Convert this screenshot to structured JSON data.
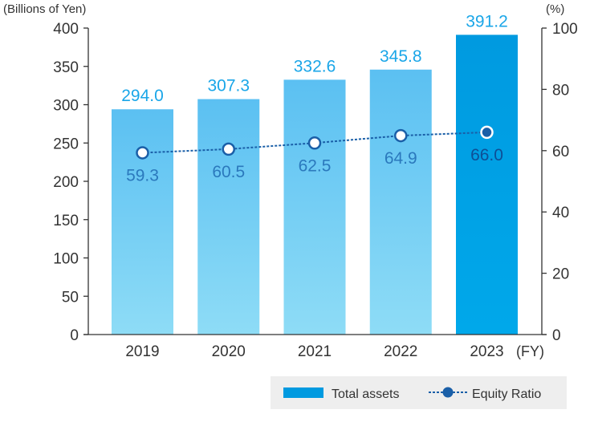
{
  "chart_data": {
    "type": "bar",
    "categories": [
      "2019",
      "2020",
      "2021",
      "2022",
      "2023"
    ],
    "series": [
      {
        "name": "Total assets",
        "kind": "bar",
        "axis": "left",
        "values": [
          294.0,
          307.3,
          332.6,
          345.8,
          391.2
        ],
        "labels": [
          "294.0",
          "307.3",
          "332.6",
          "345.8",
          "391.2"
        ]
      },
      {
        "name": "Equity Ratio",
        "kind": "line",
        "axis": "right",
        "values": [
          59.3,
          60.5,
          62.5,
          64.9,
          66.0
        ],
        "labels": [
          "59.3",
          "60.5",
          "62.5",
          "64.9",
          "66.0"
        ]
      }
    ],
    "y_left": {
      "label": "(Billions of Yen)",
      "range": [
        0,
        400
      ],
      "ticks": [
        "0",
        "50",
        "100",
        "150",
        "200",
        "250",
        "300",
        "350",
        "400"
      ]
    },
    "y_right": {
      "label": "(%)",
      "range": [
        0,
        100
      ],
      "ticks": [
        "0",
        "20",
        "40",
        "60",
        "80",
        "100"
      ]
    },
    "x_unit": "(FY)",
    "legend": {
      "position": "bottom-right",
      "bar_label": "Total assets",
      "line_label": "Equity Ratio"
    },
    "highlight_category": "2023",
    "colors": {
      "bar_top": "#5bc0f2",
      "bar_bottom": "#8edcf6",
      "bar_highlight_top": "#009ae0",
      "bar_highlight_bottom": "#00a8ea",
      "bar_label": "#1aa6e8",
      "line": "#1a5fa8",
      "point_label": "#2b79bd",
      "point_label_highlight": "#0e4f96",
      "axis_text": "#333333",
      "legend_bg": "#eeeeee"
    }
  }
}
